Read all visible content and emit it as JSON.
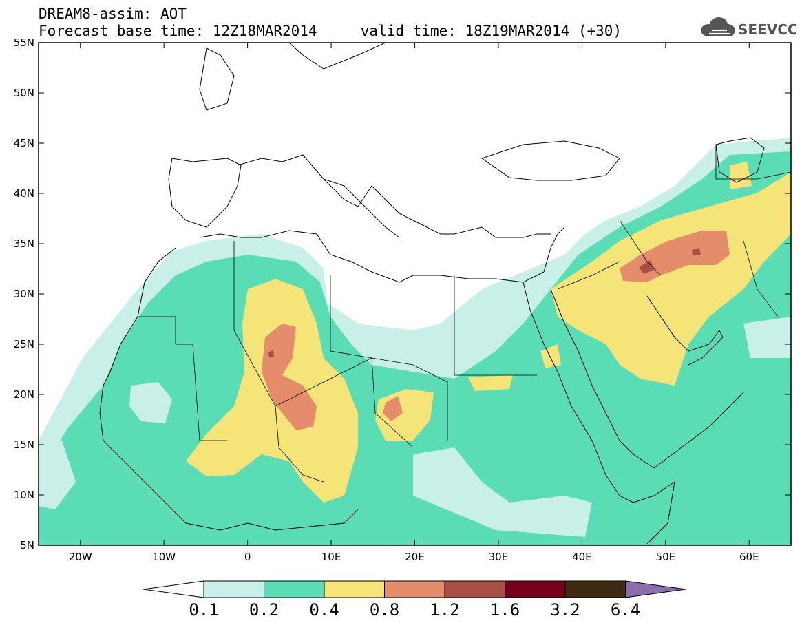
{
  "title": {
    "line1": "DREAM8-assim: AOT",
    "line2": "Forecast base time: 12Z18MAR2014     valid time: 18Z19MAR2014 (+30)"
  },
  "logo": {
    "text": "SEEVCCC",
    "icon": "cloud-icon"
  },
  "map": {
    "lon_range": [
      -25,
      65
    ],
    "lat_range": [
      5,
      55
    ],
    "lat_labels": [
      "55N",
      "50N",
      "45N",
      "40N",
      "35N",
      "30N",
      "25N",
      "20N",
      "15N",
      "10N",
      "5N"
    ],
    "lon_labels": [
      "20W",
      "10W",
      "0",
      "10E",
      "20E",
      "30E",
      "40E",
      "50E",
      "60E"
    ]
  },
  "colorbar": {
    "labels": [
      "0.1",
      "0.2",
      "0.4",
      "0.8",
      "1.2",
      "1.6",
      "3.2",
      "6.4"
    ],
    "colors": [
      "#ffffff",
      "#c8f0e8",
      "#5adcb4",
      "#f5e478",
      "#e58c6a",
      "#a85046",
      "#730018",
      "#3f2a14",
      "#8c6eaa"
    ]
  }
}
